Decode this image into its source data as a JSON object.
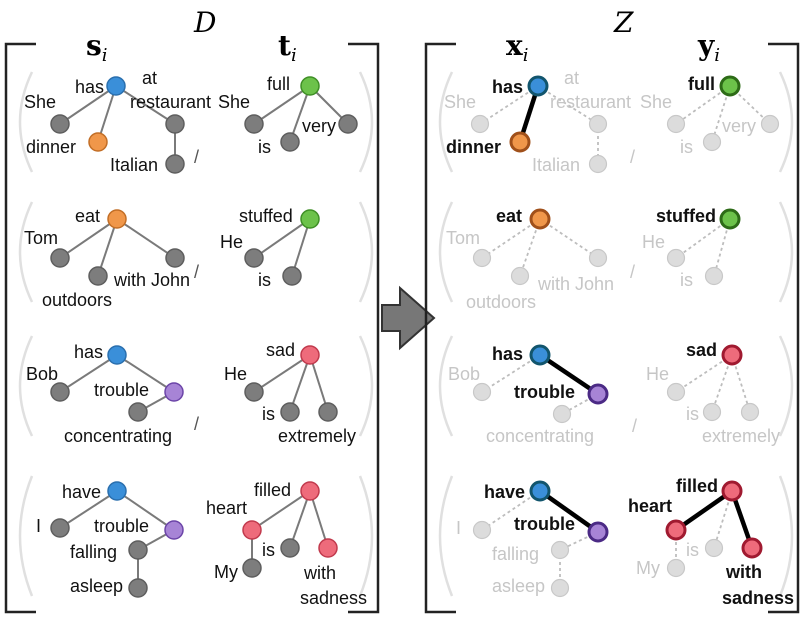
{
  "panel_left": {
    "title": "D",
    "col1_header": {
      "bold": "s",
      "sub": "i"
    },
    "col2_header": {
      "bold": "t",
      "sub": "i"
    }
  },
  "panel_right": {
    "title": "Z",
    "col1_header": {
      "bold": "x",
      "sub": "i"
    },
    "col2_header": {
      "bold": "y",
      "sub": "i"
    }
  },
  "separator": "/",
  "rows": [
    {
      "source_words": [
        "has",
        "She",
        "at",
        "restaurant",
        "dinner",
        "Italian"
      ],
      "target_words": [
        "full",
        "She",
        "very",
        "is"
      ]
    },
    {
      "source_words": [
        "eat",
        "Tom",
        "with John",
        "outdoors"
      ],
      "target_words": [
        "stuffed",
        "He",
        "is"
      ]
    },
    {
      "source_words": [
        "has",
        "Bob",
        "trouble",
        "concentrating"
      ],
      "target_words": [
        "sad",
        "He",
        "is",
        "extremely"
      ]
    },
    {
      "source_words": [
        "have",
        "I",
        "trouble",
        "falling",
        "asleep"
      ],
      "target_words": [
        "filled",
        "heart",
        "My",
        "is",
        "with",
        "sadness"
      ]
    }
  ],
  "colors": {
    "blue": "#3a8fd9",
    "orange": "#f0974a",
    "green": "#6cc24a",
    "purple": "#a784d6",
    "red": "#ee6b7b",
    "gray_node": "#7d7d7d",
    "faint_node": "#dcdcdc",
    "edge": "#7a7a7a",
    "faint_edge": "#bdbdbd",
    "bold_edge": "#000000",
    "arrow": "#777777"
  }
}
